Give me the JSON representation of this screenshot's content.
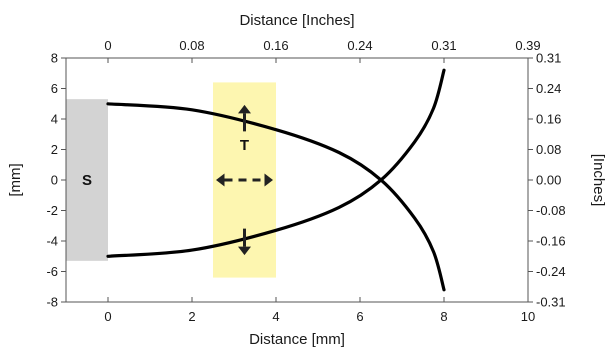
{
  "chart_data": {
    "type": "line",
    "xlabel": "Distance [mm]",
    "ylabel": "[mm]",
    "x2label": "Distance [Inches]",
    "y2label": "[Inches]",
    "xlim": [
      -1,
      10
    ],
    "ylim": [
      -8,
      8
    ],
    "x_ticks": [
      0,
      2,
      4,
      6,
      8,
      10
    ],
    "y_ticks": [
      -8,
      -6,
      -4,
      -2,
      0,
      2,
      4,
      6,
      8
    ],
    "x2_ticks": [
      {
        "label": "0",
        "at": 0
      },
      {
        "label": "0.08",
        "at": 2
      },
      {
        "label": "0.16",
        "at": 4
      },
      {
        "label": "0.24",
        "at": 6
      },
      {
        "label": "0.31",
        "at": 8
      },
      {
        "label": "0.39",
        "at": 10
      }
    ],
    "y2_ticks": [
      {
        "label": "0.31",
        "at": 8
      },
      {
        "label": "0.24",
        "at": 6
      },
      {
        "label": "0.16",
        "at": 4
      },
      {
        "label": "0.08",
        "at": 2
      },
      {
        "label": "0.00",
        "at": 0
      },
      {
        "label": "-0.08",
        "at": -2
      },
      {
        "label": "-0.16",
        "at": -4
      },
      {
        "label": "-0.24",
        "at": -6
      },
      {
        "label": "-0.31",
        "at": -8
      }
    ],
    "grid": false,
    "series": [
      {
        "values": [
          [
            0,
            5.0
          ],
          [
            2,
            4.6
          ],
          [
            4,
            3.3
          ],
          [
            5.5,
            1.8
          ],
          [
            6.5,
            0.0
          ],
          [
            7.3,
            -2.5
          ],
          [
            7.75,
            -4.7
          ],
          [
            8.0,
            -7.2
          ]
        ]
      },
      {
        "values": [
          [
            0,
            -5.0
          ],
          [
            2,
            -4.6
          ],
          [
            4,
            -3.3
          ],
          [
            5.5,
            -1.8
          ],
          [
            6.5,
            0.0
          ],
          [
            7.3,
            2.5
          ],
          [
            7.75,
            4.7
          ],
          [
            8.0,
            7.2
          ]
        ]
      }
    ],
    "regions": [
      {
        "label": "S",
        "x": [
          -1,
          0
        ],
        "y": [
          -5.3,
          5.3
        ],
        "color": "#d3d3d3"
      },
      {
        "label": "T",
        "x": [
          2.5,
          4
        ],
        "y": [
          -6.4,
          6.4
        ],
        "color": "#fdf6b0"
      }
    ],
    "line_color": "#000000"
  }
}
